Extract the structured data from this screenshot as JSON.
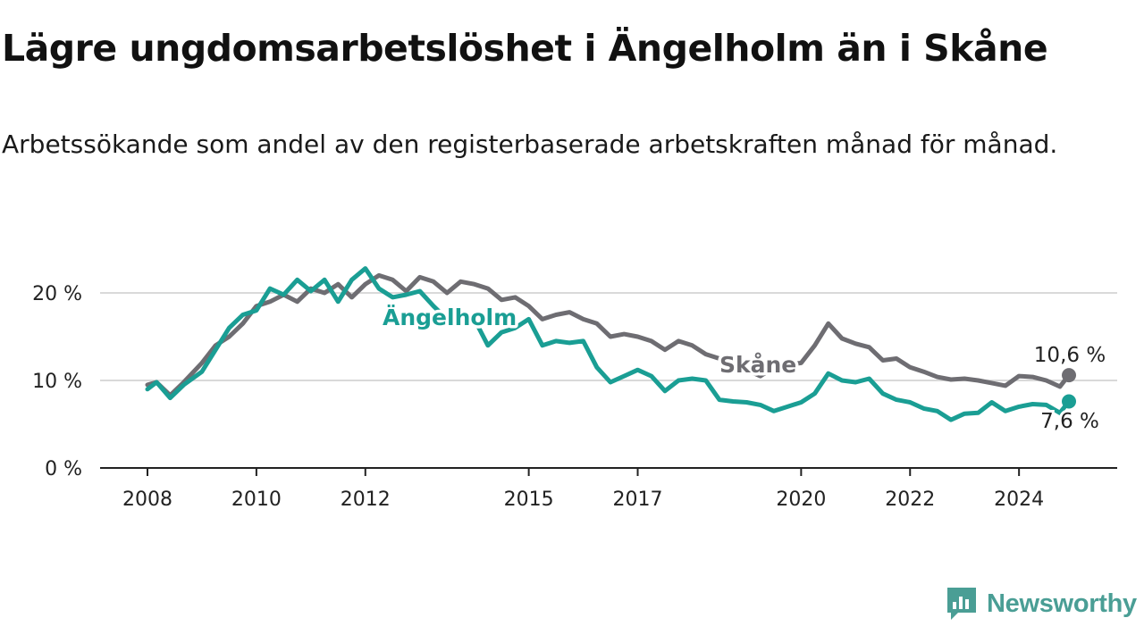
{
  "title": "Lägre ungdomsarbetslöshet i Ängelholm än i Skåne",
  "subtitle": "Arbetssökande som andel av den registerbaserade arbetskraften månad för månad.",
  "brand": {
    "name": "Newsworthy",
    "icon": "newsworthy-logo-icon",
    "color": "#4a9e95"
  },
  "chart_data": {
    "type": "line",
    "title": "Lägre ungdomsarbetslöshet i Ängelholm än i Skåne",
    "subtitle": "Arbetssökande som andel av den registerbaserade arbetskraften månad för månad.",
    "xlabel": "",
    "ylabel": "",
    "x_ticks": [
      "2008",
      "2010",
      "2012",
      "2015",
      "2017",
      "2020",
      "2022",
      "2024"
    ],
    "y_ticks": [
      {
        "value": 0,
        "label": "0 %"
      },
      {
        "value": 10,
        "label": "10 %"
      },
      {
        "value": 20,
        "label": "20 %"
      }
    ],
    "xlim": [
      "2008-01",
      "2025-06"
    ],
    "ylim": [
      0,
      25
    ],
    "grid": "horizontal",
    "legend": "inline labels",
    "series": [
      {
        "name": "Skåne",
        "color": "#6e6d72",
        "end_label": "10,6 %",
        "points": [
          [
            "2008-01",
            9.5
          ],
          [
            "2008-03",
            9.8
          ],
          [
            "2008-06",
            8.3
          ],
          [
            "2008-09",
            9.8
          ],
          [
            "2009-01",
            12.0
          ],
          [
            "2009-04",
            14.0
          ],
          [
            "2009-07",
            15.0
          ],
          [
            "2009-10",
            16.5
          ],
          [
            "2010-01",
            18.5
          ],
          [
            "2010-04",
            19.0
          ],
          [
            "2010-07",
            19.8
          ],
          [
            "2010-10",
            19.0
          ],
          [
            "2011-01",
            20.5
          ],
          [
            "2011-04",
            20.0
          ],
          [
            "2011-07",
            21.0
          ],
          [
            "2011-10",
            19.5
          ],
          [
            "2012-01",
            21.0
          ],
          [
            "2012-04",
            22.0
          ],
          [
            "2012-07",
            21.5
          ],
          [
            "2012-10",
            20.2
          ],
          [
            "2013-01",
            21.8
          ],
          [
            "2013-04",
            21.3
          ],
          [
            "2013-07",
            20.0
          ],
          [
            "2013-10",
            21.3
          ],
          [
            "2014-01",
            21.0
          ],
          [
            "2014-04",
            20.5
          ],
          [
            "2014-07",
            19.2
          ],
          [
            "2014-10",
            19.5
          ],
          [
            "2015-01",
            18.5
          ],
          [
            "2015-04",
            17.0
          ],
          [
            "2015-07",
            17.5
          ],
          [
            "2015-10",
            17.8
          ],
          [
            "2016-01",
            17.0
          ],
          [
            "2016-04",
            16.5
          ],
          [
            "2016-07",
            15.0
          ],
          [
            "2016-10",
            15.3
          ],
          [
            "2017-01",
            15.0
          ],
          [
            "2017-04",
            14.5
          ],
          [
            "2017-07",
            13.5
          ],
          [
            "2017-10",
            14.5
          ],
          [
            "2018-01",
            14.0
          ],
          [
            "2018-04",
            13.0
          ],
          [
            "2018-07",
            12.5
          ],
          [
            "2018-10",
            11.5
          ],
          [
            "2019-01",
            11.2
          ],
          [
            "2019-04",
            10.5
          ],
          [
            "2019-07",
            11.5
          ],
          [
            "2019-10",
            11.8
          ],
          [
            "2020-01",
            12.0
          ],
          [
            "2020-04",
            14.0
          ],
          [
            "2020-07",
            16.5
          ],
          [
            "2020-10",
            14.8
          ],
          [
            "2021-01",
            14.2
          ],
          [
            "2021-04",
            13.8
          ],
          [
            "2021-07",
            12.3
          ],
          [
            "2021-10",
            12.5
          ],
          [
            "2022-01",
            11.5
          ],
          [
            "2022-04",
            11.0
          ],
          [
            "2022-07",
            10.4
          ],
          [
            "2022-10",
            10.1
          ],
          [
            "2023-01",
            10.2
          ],
          [
            "2023-04",
            10.0
          ],
          [
            "2023-07",
            9.7
          ],
          [
            "2023-10",
            9.4
          ],
          [
            "2024-01",
            10.5
          ],
          [
            "2024-04",
            10.4
          ],
          [
            "2024-07",
            10.0
          ],
          [
            "2024-10",
            9.3
          ],
          [
            "2024-12",
            10.6
          ]
        ]
      },
      {
        "name": "Ängelholm",
        "color": "#1a9e94",
        "end_label": "7,6 %",
        "points": [
          [
            "2008-01",
            9.0
          ],
          [
            "2008-03",
            9.8
          ],
          [
            "2008-06",
            8.0
          ],
          [
            "2008-09",
            9.5
          ],
          [
            "2009-01",
            11.0
          ],
          [
            "2009-04",
            13.5
          ],
          [
            "2009-07",
            16.0
          ],
          [
            "2009-10",
            17.5
          ],
          [
            "2010-01",
            18.0
          ],
          [
            "2010-04",
            20.5
          ],
          [
            "2010-07",
            19.8
          ],
          [
            "2010-10",
            21.5
          ],
          [
            "2011-01",
            20.2
          ],
          [
            "2011-04",
            21.5
          ],
          [
            "2011-07",
            19.0
          ],
          [
            "2011-10",
            21.5
          ],
          [
            "2012-01",
            22.8
          ],
          [
            "2012-04",
            20.5
          ],
          [
            "2012-07",
            19.5
          ],
          [
            "2012-10",
            19.8
          ],
          [
            "2013-01",
            20.2
          ],
          [
            "2013-04",
            18.5
          ],
          [
            "2013-07",
            17.0
          ],
          [
            "2013-10",
            17.5
          ],
          [
            "2014-01",
            17.0
          ],
          [
            "2014-04",
            14.0
          ],
          [
            "2014-07",
            15.5
          ],
          [
            "2014-10",
            16.0
          ],
          [
            "2015-01",
            17.0
          ],
          [
            "2015-04",
            14.0
          ],
          [
            "2015-07",
            14.5
          ],
          [
            "2015-10",
            14.3
          ],
          [
            "2016-01",
            14.5
          ],
          [
            "2016-04",
            11.5
          ],
          [
            "2016-07",
            9.8
          ],
          [
            "2016-10",
            10.5
          ],
          [
            "2017-01",
            11.2
          ],
          [
            "2017-04",
            10.5
          ],
          [
            "2017-07",
            8.8
          ],
          [
            "2017-10",
            10.0
          ],
          [
            "2018-01",
            10.2
          ],
          [
            "2018-04",
            10.0
          ],
          [
            "2018-07",
            7.8
          ],
          [
            "2018-10",
            7.6
          ],
          [
            "2019-01",
            7.5
          ],
          [
            "2019-04",
            7.2
          ],
          [
            "2019-07",
            6.5
          ],
          [
            "2019-10",
            7.0
          ],
          [
            "2020-01",
            7.5
          ],
          [
            "2020-04",
            8.5
          ],
          [
            "2020-07",
            10.8
          ],
          [
            "2020-10",
            10.0
          ],
          [
            "2021-01",
            9.8
          ],
          [
            "2021-04",
            10.2
          ],
          [
            "2021-07",
            8.5
          ],
          [
            "2021-10",
            7.8
          ],
          [
            "2022-01",
            7.5
          ],
          [
            "2022-04",
            6.8
          ],
          [
            "2022-07",
            6.5
          ],
          [
            "2022-10",
            5.5
          ],
          [
            "2023-01",
            6.2
          ],
          [
            "2023-04",
            6.3
          ],
          [
            "2023-07",
            7.5
          ],
          [
            "2023-10",
            6.5
          ],
          [
            "2024-01",
            7.0
          ],
          [
            "2024-04",
            7.3
          ],
          [
            "2024-07",
            7.2
          ],
          [
            "2024-10",
            6.3
          ],
          [
            "2024-12",
            7.6
          ]
        ]
      }
    ]
  }
}
